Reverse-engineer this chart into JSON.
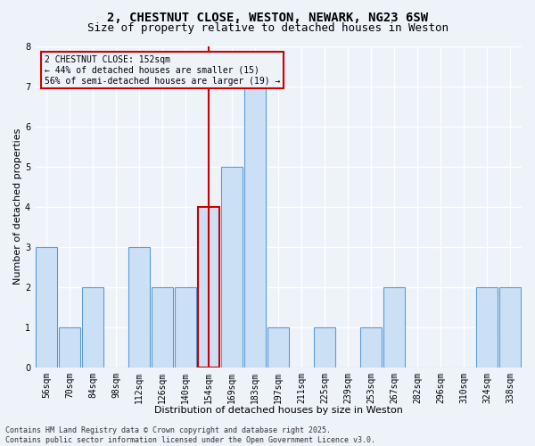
{
  "title1": "2, CHESTNUT CLOSE, WESTON, NEWARK, NG23 6SW",
  "title2": "Size of property relative to detached houses in Weston",
  "xlabel": "Distribution of detached houses by size in Weston",
  "ylabel": "Number of detached properties",
  "categories": [
    "56sqm",
    "70sqm",
    "84sqm",
    "98sqm",
    "112sqm",
    "126sqm",
    "140sqm",
    "154sqm",
    "169sqm",
    "183sqm",
    "197sqm",
    "211sqm",
    "225sqm",
    "239sqm",
    "253sqm",
    "267sqm",
    "282sqm",
    "296sqm",
    "310sqm",
    "324sqm",
    "338sqm"
  ],
  "values": [
    3,
    1,
    2,
    0,
    3,
    2,
    2,
    4,
    5,
    7,
    1,
    0,
    1,
    0,
    1,
    2,
    0,
    0,
    0,
    2,
    2
  ],
  "highlight_index": 7,
  "bar_color": "#cce0f5",
  "bar_edgecolor": "#5b9bd5",
  "highlight_bar_edgecolor": "#cc0000",
  "vline_color": "#cc0000",
  "ylim": [
    0,
    8
  ],
  "yticks": [
    0,
    1,
    2,
    3,
    4,
    5,
    6,
    7,
    8
  ],
  "annotation_text": "2 CHESTNUT CLOSE: 152sqm\n← 44% of detached houses are smaller (15)\n56% of semi-detached houses are larger (19) →",
  "annotation_box_edgecolor": "#cc0000",
  "footer": "Contains HM Land Registry data © Crown copyright and database right 2025.\nContains public sector information licensed under the Open Government Licence v3.0.",
  "bg_color": "#eef2f9",
  "grid_color": "#ffffff",
  "title_fontsize": 10,
  "subtitle_fontsize": 9,
  "tick_fontsize": 7,
  "label_fontsize": 8
}
